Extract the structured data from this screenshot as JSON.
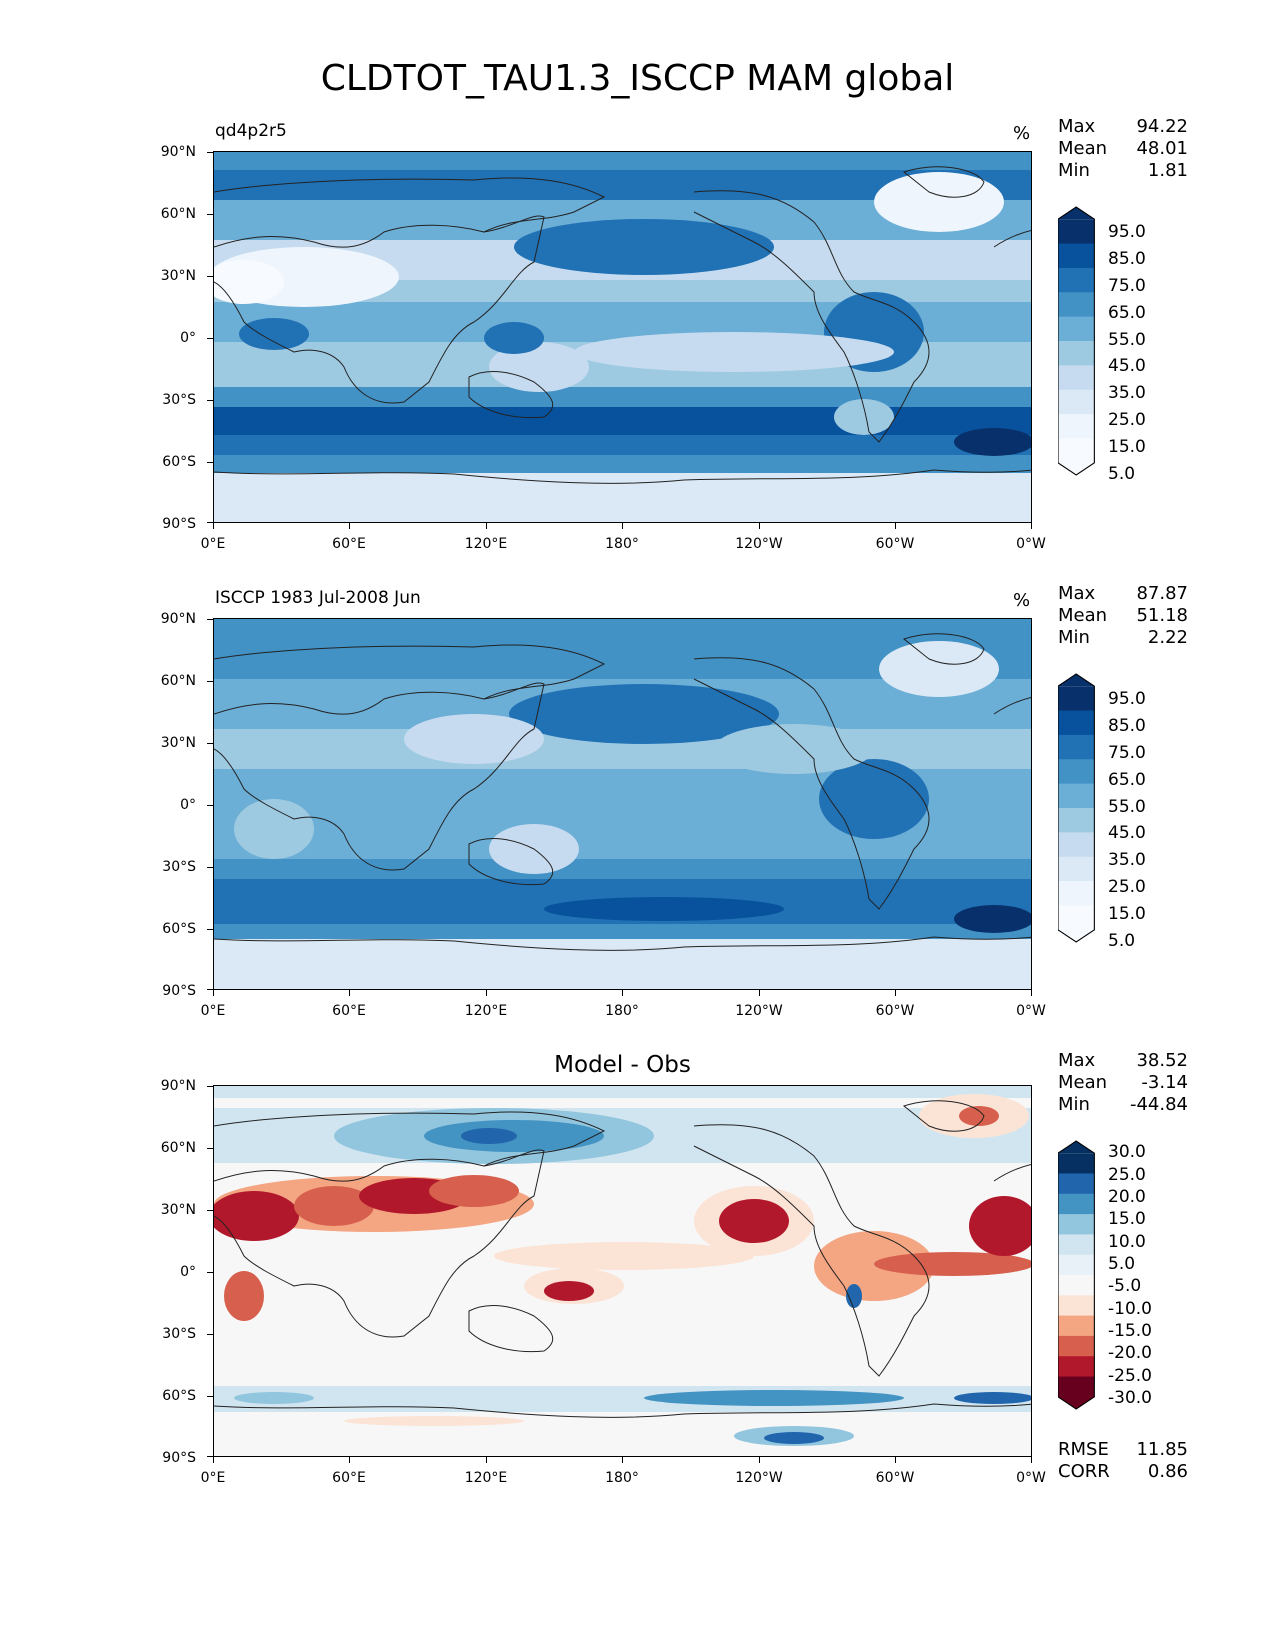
{
  "figure": {
    "title": "CLDTOT_TAU1.3_ISCCP MAM global"
  },
  "axes": {
    "lat_labels": [
      "90°N",
      "60°N",
      "30°N",
      "0°",
      "30°S",
      "60°S",
      "90°S"
    ],
    "lon_labels": [
      "0°E",
      "60°E",
      "120°E",
      "180°",
      "120°W",
      "60°W",
      "0°W"
    ]
  },
  "panels": [
    {
      "left_title": "qd4p2r5",
      "center_title": "",
      "units": "%",
      "stats": [
        {
          "label": "Max",
          "value": "94.22"
        },
        {
          "label": "Mean",
          "value": "48.01"
        },
        {
          "label": "Min",
          "value": "1.81"
        }
      ],
      "colorbar": {
        "labels": [
          "95.0",
          "85.0",
          "75.0",
          "65.0",
          "55.0",
          "45.0",
          "35.0",
          "25.0",
          "15.0",
          "5.0"
        ],
        "colors": [
          "#08306b",
          "#08519c",
          "#2171b5",
          "#4292c6",
          "#6baed6",
          "#9ecae1",
          "#c6dbef",
          "#dbe9f6",
          "#eef5fc",
          "#f7fbff"
        ]
      }
    },
    {
      "left_title": "ISCCP 1983 Jul-2008 Jun",
      "center_title": "",
      "units": "%",
      "stats": [
        {
          "label": "Max",
          "value": "87.87"
        },
        {
          "label": "Mean",
          "value": "51.18"
        },
        {
          "label": "Min",
          "value": "2.22"
        }
      ],
      "colorbar": {
        "labels": [
          "95.0",
          "85.0",
          "75.0",
          "65.0",
          "55.0",
          "45.0",
          "35.0",
          "25.0",
          "15.0",
          "5.0"
        ],
        "colors": [
          "#08306b",
          "#08519c",
          "#2171b5",
          "#4292c6",
          "#6baed6",
          "#9ecae1",
          "#c6dbef",
          "#dbe9f6",
          "#eef5fc",
          "#f7fbff"
        ]
      }
    },
    {
      "left_title": "",
      "center_title": "Model - Obs",
      "units": "",
      "stats": [
        {
          "label": "Max",
          "value": "38.52"
        },
        {
          "label": "Mean",
          "value": "-3.14"
        },
        {
          "label": "Min",
          "value": "-44.84"
        }
      ],
      "extra_stats": [
        {
          "label": "RMSE",
          "value": "11.85"
        },
        {
          "label": "CORR",
          "value": "0.86"
        }
      ],
      "colorbar": {
        "labels": [
          "30.0",
          "25.0",
          "20.0",
          "15.0",
          "10.0",
          "5.0",
          "-5.0",
          "-10.0",
          "-15.0",
          "-20.0",
          "-25.0",
          "-30.0"
        ],
        "colors": [
          "#053061",
          "#2166ac",
          "#4393c3",
          "#92c5de",
          "#d1e5f0",
          "#e8f1f7",
          "#f7f7f7",
          "#fbe3d6",
          "#f4a582",
          "#d6604d",
          "#b2182b",
          "#67001f"
        ]
      }
    }
  ]
}
